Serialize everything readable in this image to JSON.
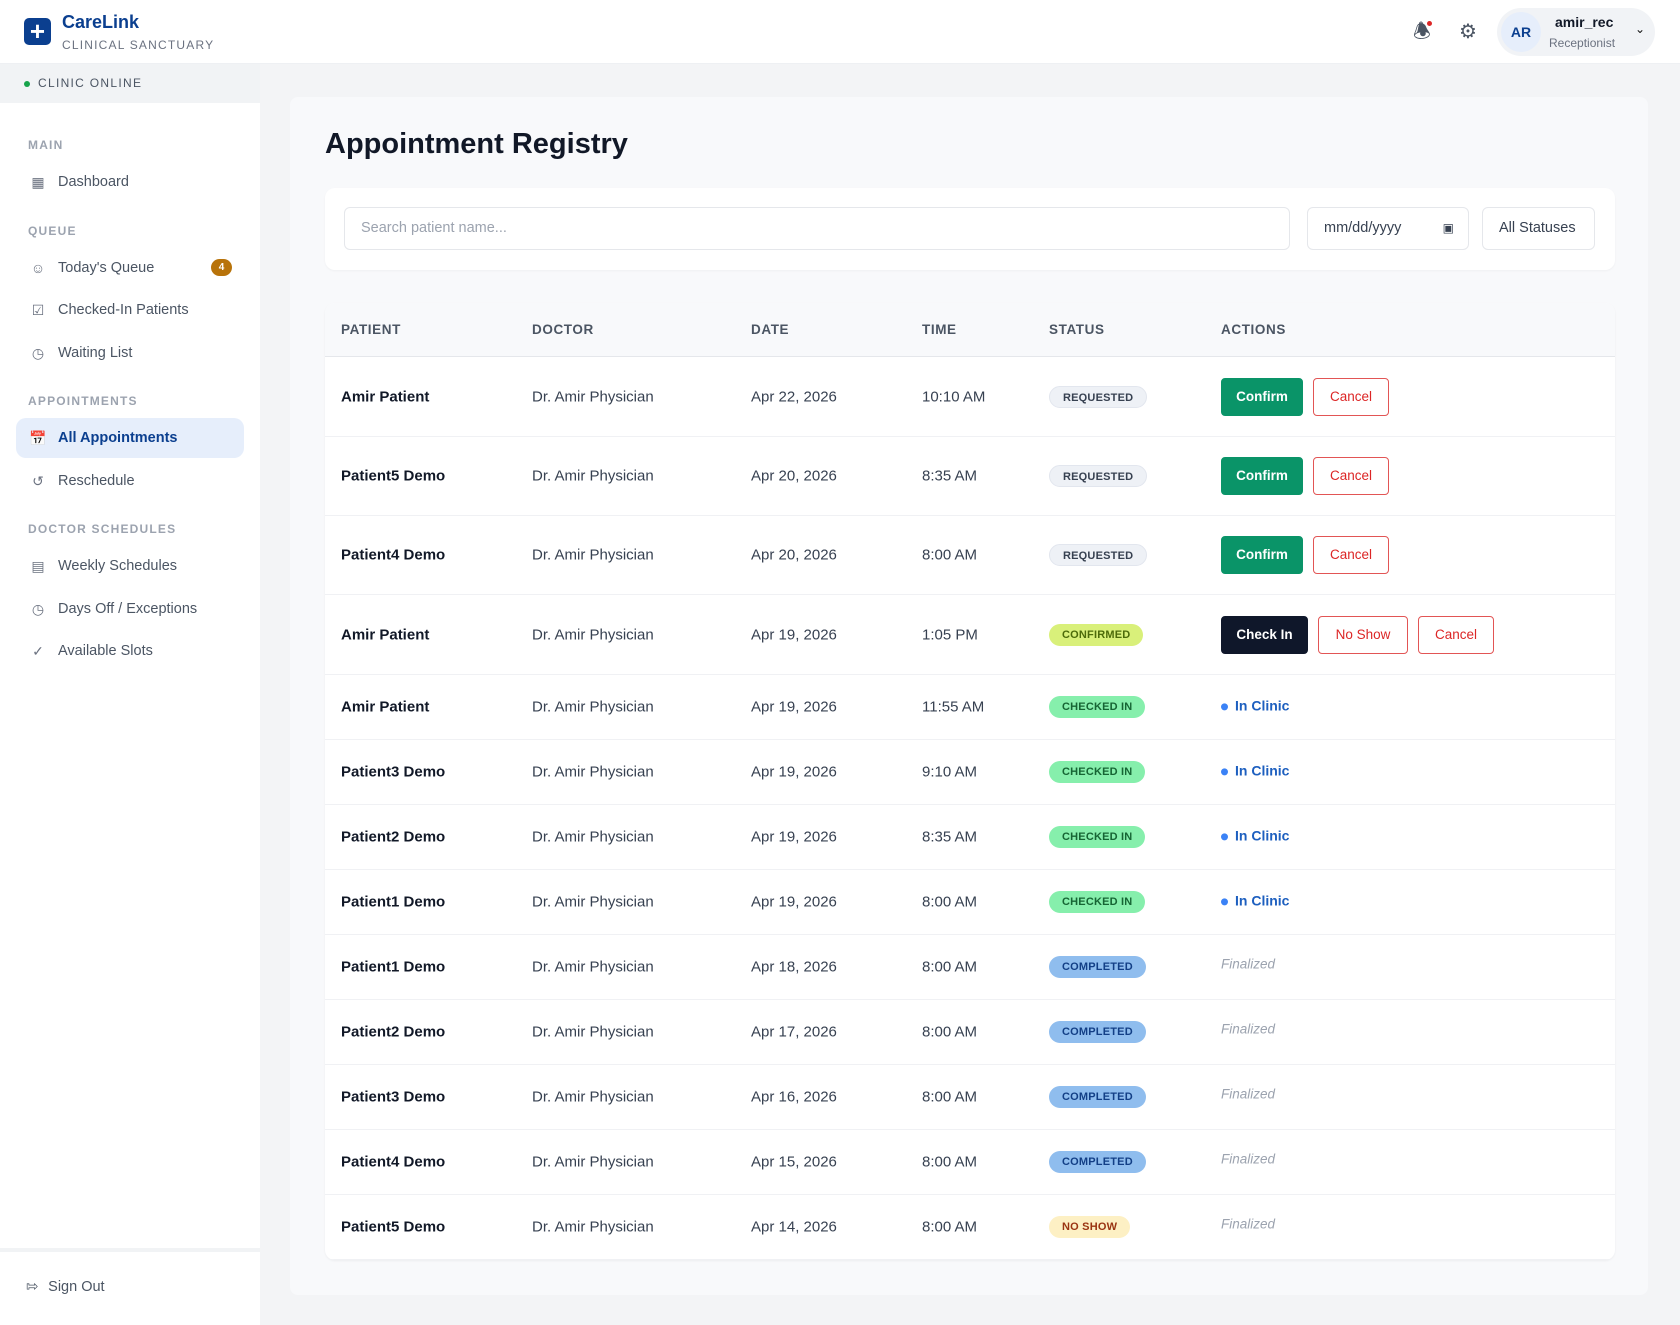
{
  "header": {
    "brand": "CareLink",
    "subtitle": "CLINICAL SANCTUARY",
    "user": {
      "initials": "AR",
      "name": "amir_rec",
      "role": "Receptionist"
    }
  },
  "sidebar": {
    "status": "CLINIC ONLINE",
    "sections": {
      "main": "MAIN",
      "queue": "QUEUE",
      "appointments": "APPOINTMENTS",
      "schedules": "DOCTOR SCHEDULES"
    },
    "items": {
      "dashboard": "Dashboard",
      "todays_queue": "Today's Queue",
      "queue_count": "4",
      "checked_in": "Checked-In Patients",
      "waiting": "Waiting List",
      "all_appointments": "All Appointments",
      "reschedule": "Reschedule",
      "weekly": "Weekly Schedules",
      "days_off": "Days Off / Exceptions",
      "slots": "Available Slots"
    },
    "sign_out": "Sign Out"
  },
  "page": {
    "title": "Appointment Registry"
  },
  "filters": {
    "search_placeholder": "Search patient name...",
    "date_placeholder": "mm/dd/yyyy",
    "status": "All Statuses"
  },
  "table": {
    "headers": [
      "PATIENT",
      "DOCTOR",
      "DATE",
      "TIME",
      "STATUS",
      "ACTIONS"
    ],
    "rows": [
      {
        "patient": "Amir Patient",
        "doctor": "Dr. Amir Physician",
        "date": "Apr 22, 2026",
        "time": "10:10 AM",
        "status": "REQUESTED",
        "actions": [
          "Confirm",
          "Cancel"
        ]
      },
      {
        "patient": "Patient5 Demo",
        "doctor": "Dr. Amir Physician",
        "date": "Apr 20, 2026",
        "time": "8:35 AM",
        "status": "REQUESTED",
        "actions": [
          "Confirm",
          "Cancel"
        ]
      },
      {
        "patient": "Patient4 Demo",
        "doctor": "Dr. Amir Physician",
        "date": "Apr 20, 2026",
        "time": "8:00 AM",
        "status": "REQUESTED",
        "actions": [
          "Confirm",
          "Cancel"
        ]
      },
      {
        "patient": "Amir Patient",
        "doctor": "Dr. Amir Physician",
        "date": "Apr 19, 2026",
        "time": "1:05 PM",
        "status": "CONFIRMED",
        "actions": [
          "Check In",
          "No Show",
          "Cancel"
        ]
      },
      {
        "patient": "Amir Patient",
        "doctor": "Dr. Amir Physician",
        "date": "Apr 19, 2026",
        "time": "11:55 AM",
        "status": "CHECKED IN",
        "note": "In Clinic"
      },
      {
        "patient": "Patient3 Demo",
        "doctor": "Dr. Amir Physician",
        "date": "Apr 19, 2026",
        "time": "9:10 AM",
        "status": "CHECKED IN",
        "note": "In Clinic"
      },
      {
        "patient": "Patient2 Demo",
        "doctor": "Dr. Amir Physician",
        "date": "Apr 19, 2026",
        "time": "8:35 AM",
        "status": "CHECKED IN",
        "note": "In Clinic"
      },
      {
        "patient": "Patient1 Demo",
        "doctor": "Dr. Amir Physician",
        "date": "Apr 19, 2026",
        "time": "8:00 AM",
        "status": "CHECKED IN",
        "note": "In Clinic"
      },
      {
        "patient": "Patient1 Demo",
        "doctor": "Dr. Amir Physician",
        "date": "Apr 18, 2026",
        "time": "8:00 AM",
        "status": "COMPLETED",
        "note": "Finalized"
      },
      {
        "patient": "Patient2 Demo",
        "doctor": "Dr. Amir Physician",
        "date": "Apr 17, 2026",
        "time": "8:00 AM",
        "status": "COMPLETED",
        "note": "Finalized"
      },
      {
        "patient": "Patient3 Demo",
        "doctor": "Dr. Amir Physician",
        "date": "Apr 16, 2026",
        "time": "8:00 AM",
        "status": "COMPLETED",
        "note": "Finalized"
      },
      {
        "patient": "Patient4 Demo",
        "doctor": "Dr. Amir Physician",
        "date": "Apr 15, 2026",
        "time": "8:00 AM",
        "status": "COMPLETED",
        "note": "Finalized"
      },
      {
        "patient": "Patient5 Demo",
        "doctor": "Dr. Amir Physician",
        "date": "Apr 14, 2026",
        "time": "8:00 AM",
        "status": "NO SHOW",
        "note": "Finalized"
      }
    ]
  },
  "colors": {
    "brand": "#0b3f8f",
    "confirm": "#0a9468",
    "danger": "#dc2626",
    "requested": "#eef1f6",
    "confirmed": "#d9f07a",
    "checked_in": "#86efac",
    "completed": "#8fbdee",
    "no_show": "#fdf0c4"
  }
}
